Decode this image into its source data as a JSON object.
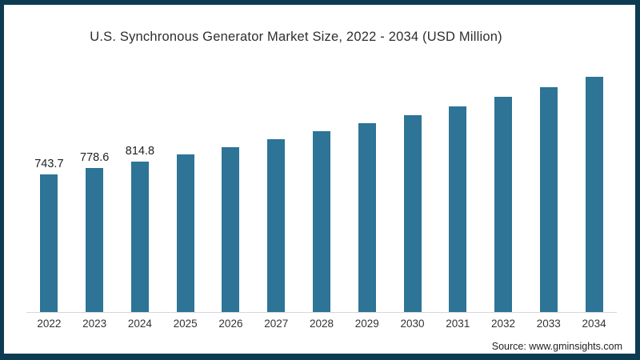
{
  "chart": {
    "title": "U.S. Synchronous Generator Market Size, 2022 - 2034 (USD Million)",
    "source": "Source: www.gminsights.com"
  },
  "chart_data": {
    "type": "bar",
    "title": "U.S. Synchronous Generator Market Size, 2022 - 2034 (USD Million)",
    "categories": [
      "2022",
      "2023",
      "2024",
      "2025",
      "2026",
      "2027",
      "2028",
      "2029",
      "2030",
      "2031",
      "2032",
      "2033",
      "2034"
    ],
    "values": [
      743.7,
      778.6,
      814.8,
      853,
      892,
      934,
      977,
      1021,
      1066,
      1113,
      1162,
      1214,
      1270
    ],
    "data_labels": [
      "743.7",
      "778.6",
      "814.8",
      "",
      "",
      "",
      "",
      "",
      "",
      "",
      "",
      "",
      ""
    ],
    "xlabel": "",
    "ylabel": "",
    "ylim": [
      0,
      1315
    ],
    "grid": false,
    "legend": "none",
    "bar_color": "#2d7496",
    "frame_color": "#0d3c52",
    "axis_line_color": "#d6d6d6",
    "source": "Source: www.gminsights.com"
  }
}
